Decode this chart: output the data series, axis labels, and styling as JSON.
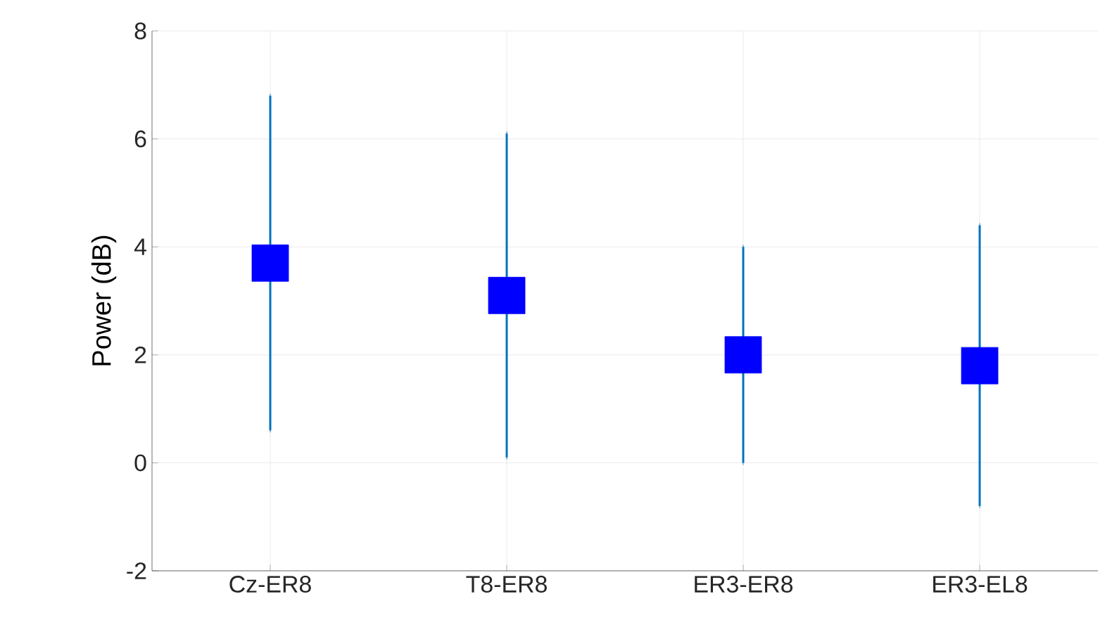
{
  "chart_data": {
    "type": "scatter",
    "ylabel": "Power (dB)",
    "categories": [
      "Cz-ER8",
      "T8-ER8",
      "ER3-ER8",
      "ER3-EL8"
    ],
    "values": [
      3.7,
      3.1,
      2.0,
      1.8
    ],
    "errors": [
      [
        0.6,
        6.8
      ],
      [
        0.1,
        6.1
      ],
      [
        0.0,
        4.0
      ],
      [
        -0.8,
        4.4
      ]
    ],
    "color": "#0000ff",
    "marker": "square",
    "ylim": [
      -2,
      8
    ],
    "yticks": [
      {
        "value": -2,
        "label": "-2"
      },
      0,
      2,
      4,
      6,
      8
    ],
    "grid": true
  }
}
